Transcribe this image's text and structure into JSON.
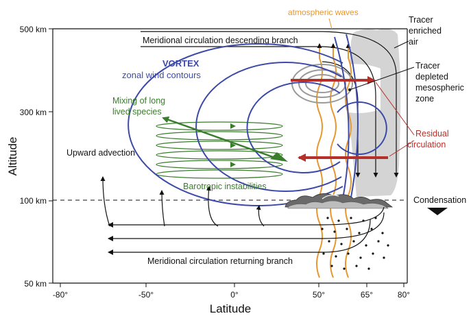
{
  "axes": {
    "y_label": "Altitude",
    "x_label": "Latitude",
    "y_ticks": [
      "500 km",
      "300 km",
      "100 km",
      "50 km"
    ],
    "x_ticks": [
      "-80°",
      "-50°",
      "0°",
      "50°",
      "65°",
      "80°"
    ]
  },
  "labels": {
    "descending": "Meridional circulation descending branch",
    "returning": "Meridional circulation returning branch",
    "vortex": "VORTEX",
    "zonal": "zonal wind contours",
    "waves": "atmospheric waves",
    "mixing_1": "Mixing of long",
    "mixing_2": "lived species",
    "upward": "Upward advection",
    "barotropic": "Barotropic instabilities",
    "tracer_enriched_1": "Tracer",
    "tracer_enriched_2": "enriched",
    "tracer_enriched_3": "air",
    "tracer_depleted_1": "Tracer",
    "tracer_depleted_2": "depleted",
    "tracer_depleted_3": "mesospheric",
    "tracer_depleted_4": "zone",
    "residual_1": "Residual",
    "residual_2": "circulation",
    "condensation": "Condensation"
  },
  "colors": {
    "vortex_blue": "#3b4aa8",
    "wave_orange": "#e8972e",
    "mixing_green": "#3a7d2c",
    "residual_red": "#b5302a",
    "tracer_gray": "#d4d4d4",
    "ink": "#111111"
  }
}
